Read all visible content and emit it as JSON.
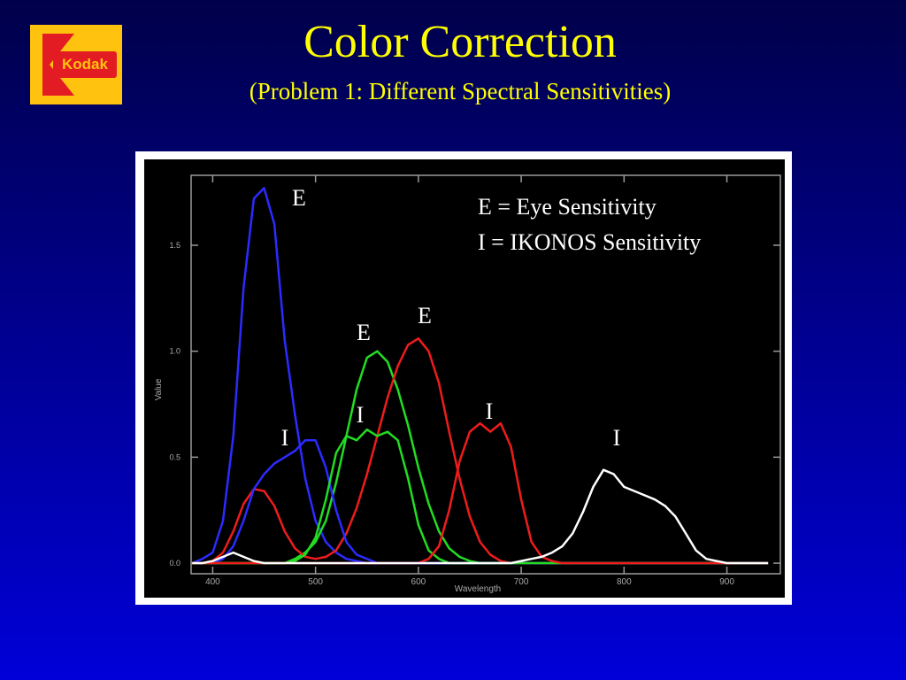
{
  "logo": "Kodak",
  "chart_data": {
    "type": "line",
    "title": "Color Correction",
    "subtitle": "(Problem 1:  Different Spectral Sensitivities)",
    "x_label": "Wavelength",
    "y_label": "Value",
    "xlim": [
      379,
      952
    ],
    "ylim": [
      -0.05,
      1.83
    ],
    "xticks": [
      400,
      500,
      600,
      700,
      800,
      900
    ],
    "yticks": [
      {
        "value": 0,
        "label": "0.0"
      },
      {
        "value": 0.5,
        "label": "0.5"
      },
      {
        "value": 1,
        "label": "1.0"
      },
      {
        "value": 1.5,
        "label": "1.5"
      }
    ],
    "grid": false,
    "annotations": [
      "E",
      "E",
      "E",
      "I",
      "I",
      "I",
      "I"
    ],
    "legend_text": [
      "E = Eye Sensitivity",
      "I = IKONOS Sensitivity"
    ],
    "x": [
      380,
      390,
      400,
      410,
      420,
      430,
      440,
      450,
      460,
      470,
      480,
      490,
      500,
      510,
      520,
      530,
      540,
      550,
      560,
      570,
      580,
      590,
      600,
      610,
      620,
      630,
      640,
      650,
      660,
      670,
      680,
      690,
      700,
      710,
      720,
      730,
      740,
      750,
      760,
      770,
      780,
      790,
      800,
      810,
      820,
      830,
      840,
      850,
      860,
      870,
      880,
      890,
      900,
      910,
      920,
      930,
      940
    ],
    "series": [
      {
        "color": "#2b2bff",
        "values": [
          0,
          0.02,
          0.05,
          0.2,
          0.6,
          1.3,
          1.72,
          1.77,
          1.6,
          1.05,
          0.7,
          0.4,
          0.2,
          0.1,
          0.05,
          0.02,
          0.01,
          0,
          0,
          0,
          0,
          0,
          0,
          0,
          0,
          0,
          0,
          0,
          0,
          0,
          0,
          0,
          0,
          0,
          0,
          0,
          0,
          0,
          0,
          0,
          0,
          0,
          0,
          0,
          0,
          0,
          0,
          0,
          0,
          0,
          0,
          0,
          0,
          0,
          0,
          0,
          0
        ]
      },
      {
        "color": "#22dd22",
        "values": [
          0,
          0,
          0,
          0,
          0,
          0,
          0,
          0,
          0,
          0,
          0.02,
          0.05,
          0.1,
          0.2,
          0.38,
          0.6,
          0.82,
          0.97,
          1.0,
          0.95,
          0.82,
          0.65,
          0.45,
          0.28,
          0.15,
          0.07,
          0.03,
          0.01,
          0,
          0,
          0,
          0,
          0,
          0,
          0,
          0,
          0,
          0,
          0,
          0,
          0,
          0,
          0,
          0,
          0,
          0,
          0,
          0,
          0,
          0,
          0,
          0,
          0,
          0,
          0,
          0,
          0
        ]
      },
      {
        "color": "#ee1c1c",
        "values": [
          0,
          0,
          0.01,
          0.05,
          0.15,
          0.28,
          0.35,
          0.34,
          0.27,
          0.15,
          0.07,
          0.03,
          0.02,
          0.03,
          0.06,
          0.14,
          0.26,
          0.42,
          0.6,
          0.78,
          0.93,
          1.03,
          1.06,
          1.0,
          0.85,
          0.62,
          0.4,
          0.22,
          0.1,
          0.04,
          0.01,
          0,
          0,
          0,
          0,
          0,
          0,
          0,
          0,
          0,
          0,
          0,
          0,
          0,
          0,
          0,
          0,
          0,
          0,
          0,
          0,
          0,
          0,
          0,
          0,
          0,
          0
        ]
      },
      {
        "color": "#2b2bff",
        "values": [
          0,
          0,
          0,
          0.02,
          0.08,
          0.2,
          0.35,
          0.42,
          0.47,
          0.5,
          0.53,
          0.58,
          0.58,
          0.45,
          0.25,
          0.1,
          0.04,
          0.02,
          0,
          0,
          0,
          0,
          0,
          0,
          0,
          0,
          0,
          0,
          0,
          0,
          0,
          0,
          0,
          0,
          0,
          0,
          0,
          0,
          0,
          0,
          0,
          0,
          0,
          0,
          0,
          0,
          0,
          0,
          0,
          0,
          0,
          0,
          0,
          0,
          0,
          0,
          0
        ]
      },
      {
        "color": "#22dd22",
        "values": [
          0,
          0,
          0,
          0,
          0,
          0,
          0,
          0,
          0,
          0,
          0.01,
          0.04,
          0.12,
          0.3,
          0.52,
          0.6,
          0.58,
          0.63,
          0.6,
          0.62,
          0.58,
          0.4,
          0.18,
          0.06,
          0.02,
          0,
          0,
          0,
          0,
          0,
          0,
          0,
          0,
          0,
          0,
          0,
          0,
          0,
          0,
          0,
          0,
          0,
          0,
          0,
          0,
          0,
          0,
          0,
          0,
          0,
          0,
          0,
          0,
          0,
          0,
          0,
          0
        ]
      },
      {
        "color": "#ee1c1c",
        "values": [
          0,
          0,
          0,
          0,
          0,
          0,
          0,
          0,
          0,
          0,
          0,
          0,
          0,
          0,
          0,
          0,
          0,
          0,
          0,
          0,
          0,
          0,
          0,
          0.02,
          0.08,
          0.25,
          0.48,
          0.62,
          0.66,
          0.62,
          0.66,
          0.55,
          0.3,
          0.1,
          0.03,
          0.01,
          0,
          0,
          0,
          0,
          0,
          0,
          0,
          0,
          0,
          0,
          0,
          0,
          0,
          0,
          0,
          0,
          0,
          0,
          0,
          0,
          0
        ]
      },
      {
        "color": "#ffffff",
        "values": [
          0,
          0,
          0.01,
          0.03,
          0.05,
          0.03,
          0.01,
          0,
          0,
          0,
          0,
          0,
          0,
          0,
          0,
          0,
          0,
          0,
          0,
          0,
          0,
          0,
          0,
          0,
          0,
          0,
          0,
          0,
          0,
          0,
          0,
          0,
          0.01,
          0.02,
          0.03,
          0.05,
          0.08,
          0.14,
          0.24,
          0.36,
          0.44,
          0.42,
          0.36,
          0.34,
          0.32,
          0.3,
          0.27,
          0.22,
          0.14,
          0.06,
          0.02,
          0.01,
          0,
          0,
          0,
          0,
          0
        ]
      }
    ]
  }
}
